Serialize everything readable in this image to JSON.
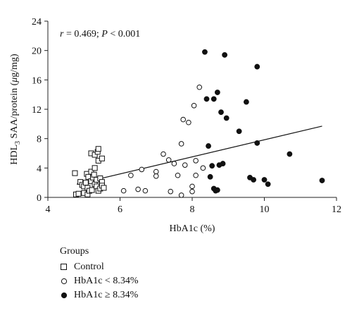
{
  "chart_data": {
    "type": "scatter",
    "ylabel": {
      "pre": "HDL",
      "sub": "3",
      "post": " SAA/protein (",
      "mu": "μ",
      "unit": "g/mg)"
    },
    "xlabel": "HbA1c (%)",
    "annotation": {
      "r_sym": "r",
      "r_val": " = 0.469; ",
      "p_sym": "P",
      "p_val": " < 0.001"
    },
    "xlim": [
      4,
      12
    ],
    "ylim": [
      0,
      24
    ],
    "x_ticks": [
      4,
      6,
      8,
      10,
      12
    ],
    "y_ticks": [
      0,
      4,
      8,
      12,
      16,
      20,
      24
    ],
    "trendline": {
      "x": [
        4.8,
        11.6
      ],
      "y": [
        1.8,
        9.7
      ]
    },
    "legend_title": "Groups",
    "series": [
      {
        "name": "Control",
        "marker": "square",
        "points": [
          [
            4.75,
            3.3
          ],
          [
            4.78,
            0.4
          ],
          [
            4.85,
            0.5
          ],
          [
            4.9,
            2.1
          ],
          [
            4.95,
            1.7
          ],
          [
            5.0,
            0.6
          ],
          [
            5.0,
            1.5
          ],
          [
            5.05,
            2.0
          ],
          [
            5.08,
            3.2
          ],
          [
            5.1,
            1.3
          ],
          [
            5.1,
            0.4
          ],
          [
            5.12,
            2.8
          ],
          [
            5.15,
            0.9
          ],
          [
            5.2,
            6.0
          ],
          [
            5.2,
            2.2
          ],
          [
            5.2,
            3.5
          ],
          [
            5.22,
            1.0
          ],
          [
            5.25,
            2.7
          ],
          [
            5.28,
            3.1
          ],
          [
            5.3,
            5.8
          ],
          [
            5.3,
            1.8
          ],
          [
            5.3,
            4.0
          ],
          [
            5.35,
            2.4
          ],
          [
            5.35,
            1.5
          ],
          [
            5.38,
            6.2
          ],
          [
            5.4,
            6.6
          ],
          [
            5.4,
            5.0
          ],
          [
            5.4,
            0.9
          ],
          [
            5.45,
            2.6
          ],
          [
            5.45,
            1.2
          ],
          [
            5.5,
            5.3
          ],
          [
            5.5,
            2.1
          ],
          [
            5.5,
            1.6
          ],
          [
            5.55,
            1.3
          ]
        ]
      },
      {
        "name": "HbA1c < 8.34%",
        "marker": "open-circle",
        "points": [
          [
            6.1,
            0.9
          ],
          [
            6.3,
            3.0
          ],
          [
            6.5,
            1.1
          ],
          [
            6.6,
            3.8
          ],
          [
            6.7,
            0.9
          ],
          [
            7.0,
            3.5
          ],
          [
            7.0,
            2.9
          ],
          [
            7.2,
            5.9
          ],
          [
            7.35,
            5.1
          ],
          [
            7.4,
            0.8
          ],
          [
            7.5,
            4.6
          ],
          [
            7.6,
            3.0
          ],
          [
            7.7,
            0.3
          ],
          [
            7.7,
            7.3
          ],
          [
            7.75,
            10.6
          ],
          [
            7.8,
            4.4
          ],
          [
            7.9,
            10.2
          ],
          [
            8.0,
            0.8
          ],
          [
            8.0,
            1.5
          ],
          [
            8.05,
            12.5
          ],
          [
            8.1,
            5.0
          ],
          [
            8.1,
            3.0
          ],
          [
            8.2,
            15.0
          ],
          [
            8.3,
            4.0
          ]
        ]
      },
      {
        "name": "HbA1c ≥ 8.34%",
        "marker": "filled-circle",
        "points": [
          [
            8.35,
            19.8
          ],
          [
            8.4,
            13.4
          ],
          [
            8.45,
            7.0
          ],
          [
            8.5,
            2.8
          ],
          [
            8.55,
            4.3
          ],
          [
            8.6,
            13.4
          ],
          [
            8.6,
            1.2
          ],
          [
            8.65,
            0.9
          ],
          [
            8.7,
            14.3
          ],
          [
            8.7,
            1.0
          ],
          [
            8.75,
            4.4
          ],
          [
            8.8,
            11.6
          ],
          [
            8.85,
            4.6
          ],
          [
            8.9,
            19.4
          ],
          [
            8.95,
            10.8
          ],
          [
            9.3,
            9.0
          ],
          [
            9.5,
            13.0
          ],
          [
            9.6,
            2.7
          ],
          [
            9.7,
            2.4
          ],
          [
            9.8,
            17.8
          ],
          [
            9.8,
            7.4
          ],
          [
            10.0,
            2.4
          ],
          [
            10.1,
            1.8
          ],
          [
            10.7,
            5.9
          ],
          [
            11.6,
            2.3
          ]
        ]
      }
    ]
  }
}
